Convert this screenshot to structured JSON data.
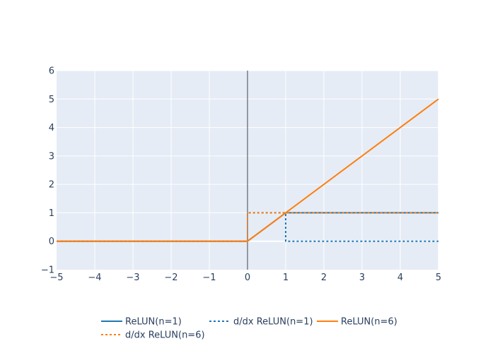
{
  "chart_data": {
    "type": "line",
    "title": "",
    "xlabel": "",
    "ylabel": "",
    "xlim": [
      -5,
      5
    ],
    "ylim": [
      -1,
      6
    ],
    "x_ticks": [
      -5,
      -4,
      -3,
      -2,
      -1,
      0,
      1,
      2,
      3,
      4,
      5
    ],
    "y_ticks": [
      -1,
      0,
      1,
      2,
      3,
      4,
      5,
      6
    ],
    "grid": true,
    "legend_position": "bottom",
    "series": [
      {
        "name": "ReLUN(n=1)",
        "color": "#1f77b4",
        "dash": "solid",
        "x": [
          -5,
          0,
          1,
          5
        ],
        "y": [
          0,
          0,
          1,
          1
        ]
      },
      {
        "name": "d/dx ReLUN(n=1)",
        "color": "#1f77b4",
        "dash": "dot",
        "x": [
          -5,
          0,
          0,
          1,
          1,
          5
        ],
        "y": [
          0,
          0,
          1,
          1,
          0,
          0
        ]
      },
      {
        "name": "ReLUN(n=6)",
        "color": "#ff7f0e",
        "dash": "solid",
        "x": [
          -5,
          0,
          5
        ],
        "y": [
          0,
          0,
          5
        ]
      },
      {
        "name": "d/dx ReLUN(n=6)",
        "color": "#ff7f0e",
        "dash": "dot",
        "x": [
          -5,
          0,
          0,
          5
        ],
        "y": [
          0,
          0,
          1,
          1
        ]
      }
    ]
  }
}
